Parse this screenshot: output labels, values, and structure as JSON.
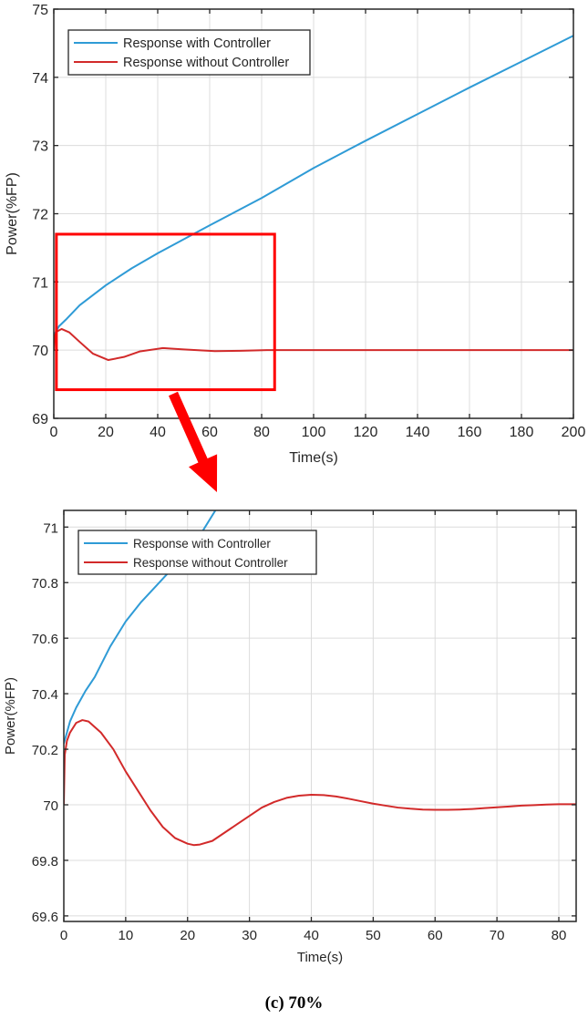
{
  "caption": "(c) 70%",
  "colors": {
    "with_controller": "#2f9bd6",
    "without_controller": "#d22a2a",
    "highlight": "#ff0000",
    "axis": "#262626",
    "grid": "#dcdcdc"
  },
  "chart_data": [
    {
      "id": "overview",
      "type": "line",
      "title": "",
      "xlabel": "Time(s)",
      "ylabel": "Power(%FP)",
      "xlim": [
        0,
        200
      ],
      "ylim": [
        69,
        75
      ],
      "xticks": [
        0,
        20,
        40,
        60,
        80,
        100,
        120,
        140,
        160,
        180,
        200
      ],
      "yticks": [
        69,
        70,
        71,
        72,
        73,
        74,
        75
      ],
      "grid": true,
      "legend_position": "upper-left",
      "series": [
        {
          "name": "Response with Controller",
          "color": "#2f9bd6",
          "x": [
            0,
            2,
            5,
            10,
            20,
            30,
            40,
            60,
            80,
            100,
            120,
            140,
            160,
            180,
            200
          ],
          "y": [
            70.22,
            70.35,
            70.46,
            70.66,
            70.95,
            71.2,
            71.42,
            71.83,
            72.23,
            72.67,
            73.07,
            73.46,
            73.85,
            74.23,
            74.61
          ]
        },
        {
          "name": "Response without Controller",
          "color": "#d22a2a",
          "x": [
            0,
            0.3,
            1,
            3,
            6,
            10,
            15,
            21,
            27,
            33,
            42,
            50,
            62,
            72,
            82,
            100,
            150,
            200
          ],
          "y": [
            70.0,
            70.2,
            70.27,
            70.31,
            70.26,
            70.12,
            69.95,
            69.855,
            69.9,
            69.98,
            70.03,
            70.01,
            69.985,
            69.99,
            70.0,
            70.0,
            70.0,
            70.0
          ]
        }
      ],
      "annotations": [
        {
          "type": "rectangle",
          "x0": 1,
          "x1": 85,
          "y0": 69.42,
          "y1": 71.7,
          "color": "#ff0000",
          "label": "zoom region"
        }
      ]
    },
    {
      "id": "zoomed",
      "type": "line",
      "title": "",
      "xlabel": "Time(s)",
      "ylabel": "Power(%FP)",
      "xlim": [
        0,
        82.8
      ],
      "ylim": [
        69.58,
        71.06
      ],
      "xticks": [
        0,
        10,
        20,
        30,
        40,
        50,
        60,
        70,
        80
      ],
      "yticks": [
        69.6,
        69.8,
        70,
        70.2,
        70.4,
        70.6,
        70.8,
        71
      ],
      "grid": true,
      "legend_position": "upper-left",
      "series": [
        {
          "name": "Response with Controller",
          "color": "#2f9bd6",
          "x": [
            0,
            1,
            2,
            3.5,
            5,
            7.5,
            10,
            12.5,
            15,
            17.5,
            20,
            22,
            24.5
          ],
          "y": [
            70.22,
            70.3,
            70.35,
            70.41,
            70.46,
            70.57,
            70.66,
            70.73,
            70.79,
            70.85,
            70.91,
            70.97,
            71.06
          ]
        },
        {
          "name": "Response without Controller",
          "color": "#d22a2a",
          "x": [
            0,
            0.15,
            0.5,
            1,
            2,
            3,
            4,
            6,
            8,
            10,
            12,
            14,
            16,
            18,
            20,
            21,
            22,
            24,
            26,
            28,
            30,
            32,
            34,
            36,
            38,
            40,
            42,
            44,
            46,
            48,
            50,
            52,
            54,
            56,
            58,
            60,
            62,
            64,
            66,
            68,
            70,
            72,
            74,
            76,
            78,
            80,
            82.8
          ],
          "y": [
            70.0,
            70.18,
            70.23,
            70.26,
            70.295,
            70.305,
            70.3,
            70.26,
            70.2,
            70.12,
            70.05,
            69.98,
            69.92,
            69.88,
            69.86,
            69.855,
            69.857,
            69.87,
            69.9,
            69.93,
            69.96,
            69.99,
            70.01,
            70.025,
            70.033,
            70.036,
            70.035,
            70.03,
            70.022,
            70.013,
            70.004,
            69.997,
            69.99,
            69.986,
            69.983,
            69.982,
            69.982,
            69.983,
            69.985,
            69.988,
            69.991,
            69.994,
            69.997,
            69.999,
            70.001,
            70.002,
            70.002
          ]
        }
      ]
    }
  ],
  "arrow": {
    "color": "#ff0000",
    "from": [
      190,
      432
    ],
    "to": [
      238,
      540
    ]
  }
}
